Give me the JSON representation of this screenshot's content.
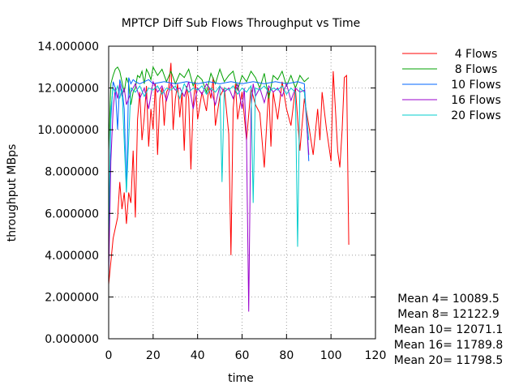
{
  "chart_data": {
    "type": "line",
    "title": "MPTCP Diff Sub Flows Throughput vs Time",
    "xlabel": "time",
    "ylabel": "throughput MBps",
    "xlim": [
      0,
      120
    ],
    "ylim": [
      0,
      14
    ],
    "xticks": [
      0,
      20,
      40,
      60,
      80,
      100,
      120
    ],
    "xtick_labels": [
      "0",
      "20",
      "40",
      "60",
      "80",
      "100",
      "120"
    ],
    "yticks": [
      0,
      2,
      4,
      6,
      8,
      10,
      12,
      14
    ],
    "ytick_labels": [
      "0.000000",
      "2.000000",
      "4.000000",
      "6.000000",
      "8.000000",
      "10.000000",
      "12.000000",
      "14.000000"
    ],
    "grid": true,
    "legend_position": "top-right outside",
    "series": [
      {
        "name": "4 Flows",
        "color": "#ff0000",
        "x": [
          0,
          2,
          4,
          5,
          6,
          7,
          8,
          9,
          10,
          11,
          12,
          13,
          14,
          15,
          16,
          17,
          18,
          19,
          20,
          21,
          22,
          23,
          24,
          25,
          26,
          27,
          28,
          29,
          30,
          31,
          32,
          33,
          34,
          35,
          36,
          37,
          38,
          39,
          40,
          42,
          44,
          45,
          46,
          47,
          48,
          50,
          52,
          54,
          55,
          56,
          57,
          58,
          60,
          62,
          64,
          66,
          68,
          70,
          72,
          73,
          74,
          76,
          78,
          80,
          82,
          84,
          86,
          88,
          90,
          92,
          94,
          95,
          96,
          98,
          100,
          101,
          102,
          103,
          104,
          105,
          106,
          107,
          108
        ],
        "values": [
          2.6,
          4.8,
          5.8,
          7.5,
          6.2,
          7.0,
          5.5,
          7.0,
          6.5,
          9.0,
          5.8,
          10.5,
          11.8,
          9.5,
          10.6,
          12.1,
          9.2,
          11.0,
          10.0,
          12.2,
          8.8,
          11.5,
          12.0,
          10.2,
          11.8,
          12.0,
          13.2,
          10.0,
          11.5,
          12.2,
          10.6,
          11.8,
          9.0,
          12.1,
          11.5,
          8.1,
          11.2,
          12.3,
          10.5,
          11.8,
          10.9,
          12.0,
          11.5,
          12.5,
          10.2,
          11.6,
          12.0,
          9.8,
          4.0,
          11.0,
          12.2,
          10.5,
          11.8,
          9.5,
          12.0,
          11.2,
          10.8,
          8.2,
          12.0,
          9.2,
          11.8,
          10.5,
          12.3,
          11.0,
          10.2,
          12.0,
          9.0,
          11.5,
          10.2,
          8.8,
          11.0,
          9.5,
          11.8,
          10.0,
          8.5,
          12.8,
          11.0,
          9.0,
          8.2,
          10.0,
          12.5,
          12.6,
          4.5
        ]
      },
      {
        "name": "8 Flows",
        "color": "#00a000",
        "x": [
          0,
          1,
          2,
          3,
          4,
          5,
          6,
          7,
          8,
          9,
          10,
          11,
          12,
          13,
          14,
          15,
          16,
          17,
          18,
          19,
          20,
          22,
          24,
          26,
          28,
          30,
          32,
          34,
          36,
          38,
          40,
          42,
          44,
          46,
          48,
          50,
          52,
          54,
          56,
          58,
          60,
          62,
          64,
          66,
          68,
          70,
          72,
          74,
          76,
          78,
          80,
          82,
          84,
          86,
          88,
          90
        ],
        "values": [
          9.0,
          12.2,
          12.6,
          12.9,
          13.0,
          12.8,
          12.3,
          11.8,
          12.5,
          12.2,
          11.2,
          11.8,
          12.0,
          12.6,
          12.5,
          12.8,
          12.2,
          12.9,
          12.7,
          12.4,
          13.0,
          12.6,
          12.9,
          12.3,
          12.8,
          12.2,
          12.7,
          12.5,
          12.9,
          12.1,
          12.6,
          12.4,
          11.8,
          12.7,
          12.2,
          12.9,
          12.3,
          12.6,
          12.8,
          11.9,
          12.6,
          12.3,
          12.8,
          12.5,
          12.0,
          12.7,
          11.5,
          12.6,
          12.4,
          12.8,
          12.1,
          12.6,
          12.0,
          12.6,
          12.3,
          12.5
        ]
      },
      {
        "name": "10 Flows",
        "color": "#0066ff",
        "x": [
          0,
          1,
          2,
          3,
          4,
          5,
          6,
          7,
          8,
          9,
          10,
          11,
          12,
          14,
          16,
          18,
          20,
          25,
          30,
          35,
          40,
          45,
          50,
          55,
          60,
          65,
          70,
          75,
          80,
          85,
          88,
          89,
          90
        ],
        "values": [
          4.0,
          10.5,
          12.3,
          12.0,
          10.0,
          12.4,
          12.0,
          11.0,
          7.0,
          12.5,
          12.2,
          12.4,
          12.3,
          12.2,
          12.3,
          12.4,
          12.2,
          12.3,
          12.2,
          12.3,
          12.2,
          12.3,
          12.2,
          12.3,
          12.2,
          12.3,
          12.2,
          12.3,
          12.2,
          12.3,
          12.2,
          10.5,
          8.5
        ]
      },
      {
        "name": "16 Flows",
        "color": "#9900cc",
        "x": [
          0,
          1,
          2,
          3,
          4,
          5,
          6,
          7,
          8,
          10,
          12,
          14,
          16,
          18,
          20,
          22,
          24,
          26,
          28,
          30,
          32,
          34,
          36,
          38,
          40,
          42,
          44,
          46,
          48,
          50,
          52,
          54,
          56,
          58,
          60,
          61,
          62,
          63,
          64,
          65,
          66,
          68,
          70,
          72,
          74,
          76,
          78,
          80,
          82,
          84,
          86,
          88,
          90
        ],
        "values": [
          3.0,
          8.5,
          11.0,
          12.0,
          11.5,
          12.2,
          11.6,
          12.0,
          11.2,
          11.8,
          12.2,
          11.5,
          12.0,
          11.0,
          12.3,
          11.8,
          12.1,
          11.4,
          12.2,
          11.9,
          12.0,
          11.6,
          12.3,
          11.0,
          12.0,
          11.7,
          12.2,
          11.9,
          11.2,
          12.1,
          11.8,
          12.0,
          11.5,
          12.2,
          11.0,
          12.0,
          9.5,
          1.3,
          11.0,
          12.2,
          11.6,
          12.0,
          11.3,
          12.1,
          11.8,
          12.0,
          11.6,
          12.2,
          11.4,
          12.0,
          11.8,
          11.9,
          8.8
        ]
      },
      {
        "name": "20 Flows",
        "color": "#00cccc",
        "x": [
          0,
          1,
          2,
          3,
          4,
          5,
          6,
          8,
          10,
          12,
          14,
          16,
          18,
          20,
          22,
          24,
          26,
          28,
          30,
          32,
          34,
          36,
          38,
          40,
          42,
          44,
          46,
          48,
          50,
          51,
          52,
          54,
          56,
          58,
          60,
          62,
          64,
          65,
          66,
          68,
          70,
          72,
          74,
          76,
          78,
          80,
          82,
          84,
          85,
          86,
          88,
          90
        ],
        "values": [
          5.0,
          11.0,
          12.0,
          11.8,
          12.1,
          11.5,
          12.0,
          7.0,
          12.0,
          11.8,
          12.1,
          11.6,
          12.0,
          11.9,
          12.1,
          11.7,
          12.0,
          11.9,
          12.1,
          11.5,
          12.2,
          11.8,
          12.0,
          11.9,
          12.1,
          11.7,
          12.0,
          11.8,
          12.1,
          7.5,
          12.0,
          11.9,
          12.1,
          11.7,
          12.0,
          11.8,
          12.1,
          6.5,
          12.0,
          11.9,
          12.1,
          11.8,
          12.0,
          11.9,
          12.1,
          11.7,
          12.0,
          11.8,
          4.4,
          12.0,
          11.8,
          9.5
        ]
      }
    ],
    "annotations": [
      "Mean 4= 10089.5",
      "Mean 8= 12122.9",
      "Mean 10= 12071.1",
      "Mean 16= 11789.8",
      "Mean 20= 11798.5"
    ]
  }
}
